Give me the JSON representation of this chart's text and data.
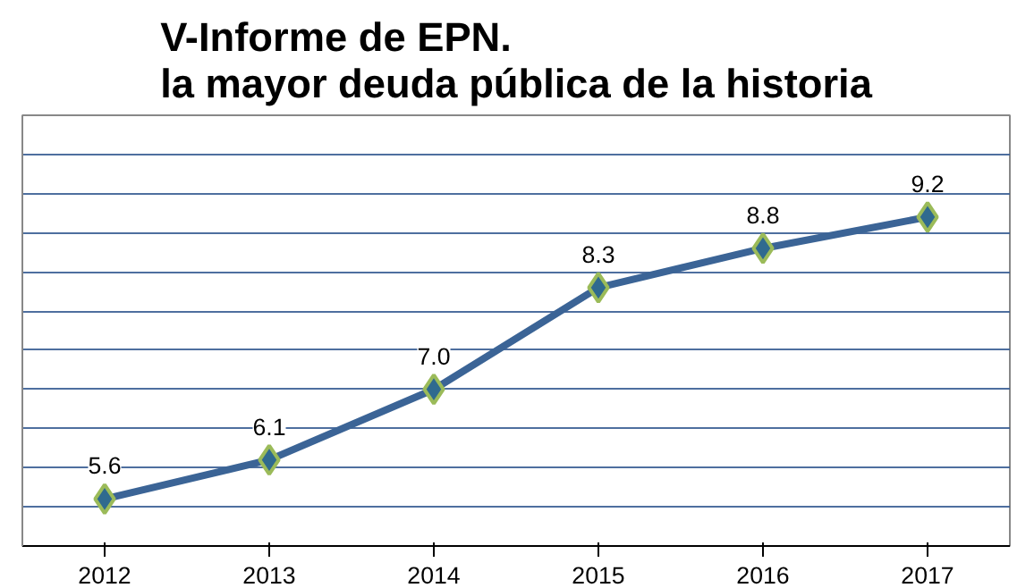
{
  "chart_data": {
    "type": "line",
    "title": "V-Informe de EPN.\nla mayor deuda pública de la historia",
    "categories": [
      "2012",
      "2013",
      "2014",
      "2015",
      "2016",
      "2017"
    ],
    "series": [
      {
        "color": "#3b6496",
        "values": [
          5.6,
          6.1,
          7.0,
          8.3,
          8.8,
          9.2
        ],
        "value_labels": [
          "5.6",
          "6.1",
          "7.0",
          "8.3",
          "8.8",
          "9.2"
        ]
      }
    ],
    "marker": "diamond",
    "grid": "y",
    "tick_labels": "x",
    "ylim": [
      5,
      10.5
    ],
    "yticks": [
      {
        "value": 5,
        "label": null
      },
      {
        "value": 5.5,
        "label": null
      },
      {
        "value": 6,
        "label": null
      },
      {
        "value": 6.5,
        "label": null
      },
      {
        "value": 7,
        "label": null
      },
      {
        "value": 7.5,
        "label": null
      },
      {
        "value": 8,
        "label": null
      },
      {
        "value": 8.5,
        "label": null
      },
      {
        "value": 9,
        "label": null
      },
      {
        "value": 9.5,
        "label": null
      },
      {
        "value": 10,
        "label": null
      },
      {
        "value": 10.5,
        "label": null
      }
    ]
  }
}
